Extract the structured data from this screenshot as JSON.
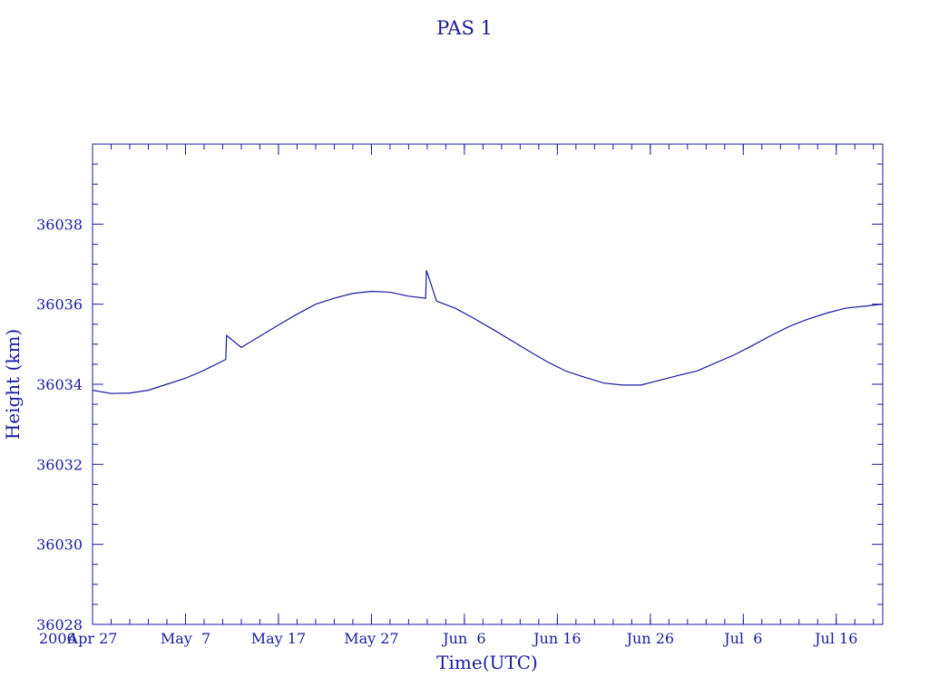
{
  "chart_data": {
    "type": "line",
    "title": "PAS 1",
    "xlabel": "Time(UTC)",
    "ylabel": "Height (km)",
    "x_start_label": "2006",
    "x_tick_labels": [
      "Apr 27",
      "May  7",
      "May 17",
      "May 27",
      "Jun  6",
      "Jun 16",
      "Jun 26",
      "Jul  6",
      "Jul 16"
    ],
    "x_ticks": [
      "2006-04-27",
      "2006-05-07",
      "2006-05-17",
      "2006-05-27",
      "2006-06-06",
      "2006-06-16",
      "2006-06-26",
      "2006-07-06",
      "2006-07-16"
    ],
    "xlim": [
      "2006-04-27",
      "2006-07-21"
    ],
    "ylim": [
      36028,
      36040
    ],
    "y_ticks": [
      36028,
      36030,
      36032,
      36034,
      36036,
      36038
    ],
    "y_tick_labels": [
      "36028",
      "36030",
      "36032",
      "36034",
      "36036",
      "36038"
    ],
    "grid": false,
    "series": [
      {
        "x": [
          "2006-04-27",
          "2006-04-29",
          "2006-05-01",
          "2006-05-03",
          "2006-05-05",
          "2006-05-07",
          "2006-05-09",
          "2006-05-11 08:00",
          "2006-05-11 10:00",
          "2006-05-13",
          "2006-05-15",
          "2006-05-17",
          "2006-05-19",
          "2006-05-21",
          "2006-05-23",
          "2006-05-25",
          "2006-05-27",
          "2006-05-29",
          "2006-05-31",
          "2006-06-01 20:00",
          "2006-06-01 22:00",
          "2006-06-03",
          "2006-06-05",
          "2006-06-07",
          "2006-06-09",
          "2006-06-11",
          "2006-06-13",
          "2006-06-15",
          "2006-06-17",
          "2006-06-19",
          "2006-06-21",
          "2006-06-23",
          "2006-06-25",
          "2006-06-27",
          "2006-06-29",
          "2006-07-01",
          "2006-07-03",
          "2006-07-05",
          "2006-07-07",
          "2006-07-09",
          "2006-07-11",
          "2006-07-13",
          "2006-07-15",
          "2006-07-17",
          "2006-07-19",
          "2006-07-21"
        ],
        "y": [
          36033.85,
          36033.77,
          36033.78,
          36033.85,
          36034.0,
          36034.15,
          36034.35,
          36034.62,
          36035.22,
          36034.92,
          36035.2,
          36035.48,
          36035.75,
          36036.0,
          36036.15,
          36036.27,
          36036.32,
          36036.3,
          36036.2,
          36036.15,
          36036.85,
          36036.08,
          36035.9,
          36035.65,
          36035.38,
          36035.1,
          36034.82,
          36034.55,
          36034.32,
          36034.17,
          36034.03,
          36033.98,
          36033.98,
          36034.1,
          36034.22,
          36034.33,
          36034.53,
          36034.73,
          36034.97,
          36035.22,
          36035.45,
          36035.63,
          36035.78,
          36035.9,
          36035.95,
          36036.0
        ]
      }
    ]
  }
}
